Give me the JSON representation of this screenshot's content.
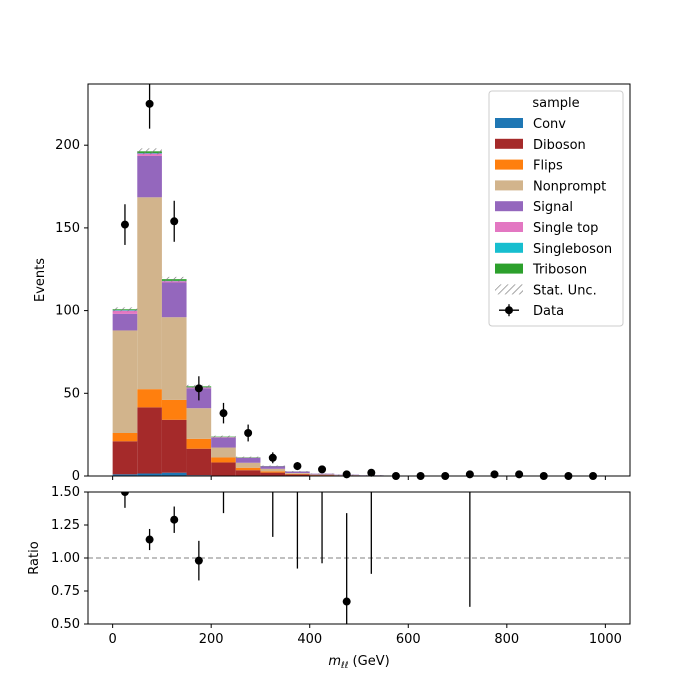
{
  "chart_data": {
    "type": "bar",
    "stacked": true,
    "x_bin_edges": [
      0,
      50,
      100,
      150,
      200,
      250,
      300,
      350,
      400,
      450,
      500,
      550,
      600,
      650,
      700,
      750,
      800,
      850,
      900,
      950,
      1000
    ],
    "xlabel_main": "m",
    "xlabel_sub": "ℓℓ",
    "xlabel_unit": " (GeV)",
    "ylabel": "Events",
    "ratio_ylabel": "Ratio",
    "xlim": [
      -50,
      1050
    ],
    "ylim": [
      0,
      237
    ],
    "ratio_ylim": [
      0.5,
      1.5
    ],
    "ratio_reference": 1.0,
    "x_ticks": [
      "0",
      "200",
      "400",
      "600",
      "800",
      "1000"
    ],
    "x_tick_values": [
      0,
      200,
      400,
      600,
      800,
      1000
    ],
    "y_ticks": [
      "0",
      "50",
      "100",
      "150",
      "200"
    ],
    "y_tick_values": [
      0,
      50,
      100,
      150,
      200
    ],
    "ratio_ticks": [
      "0.50",
      "0.75",
      "1.00",
      "1.25",
      "1.50"
    ],
    "ratio_tick_values": [
      0.5,
      0.75,
      1.0,
      1.25,
      1.5
    ],
    "legend": {
      "title": "sample",
      "placement": "top-right"
    },
    "series": [
      {
        "name": "Conv",
        "color": "#1f77b4",
        "values": [
          1,
          1.5,
          2,
          0.5,
          0.2,
          0.1,
          0.05,
          0,
          0,
          0,
          0,
          0,
          0,
          0,
          0,
          0,
          0,
          0,
          0,
          0
        ]
      },
      {
        "name": "Diboson",
        "color": "#a52a2a",
        "values": [
          20,
          40,
          32,
          16,
          8,
          3.4,
          2,
          1,
          0.5,
          0.3,
          0.2,
          0.1,
          0.05,
          0.05,
          0,
          0,
          0,
          0,
          0,
          0
        ]
      },
      {
        "name": "Flips",
        "color": "#ff7f0e",
        "values": [
          5,
          11,
          12,
          6,
          3,
          1.5,
          0.8,
          0.3,
          0.2,
          0.1,
          0,
          0,
          0,
          0,
          0,
          0,
          0,
          0,
          0,
          0
        ]
      },
      {
        "name": "Nonprompt",
        "color": "#d2b48c",
        "values": [
          62,
          116,
          50,
          18.5,
          6,
          3,
          1.5,
          0.5,
          0.2,
          0.1,
          0,
          0,
          0,
          0,
          0,
          0,
          0,
          0,
          0,
          0
        ]
      },
      {
        "name": "Signal",
        "color": "#9467bd",
        "values": [
          10,
          25,
          21,
          12,
          6,
          3,
          1.6,
          0.9,
          0.5,
          0.3,
          0.2,
          0.1,
          0.05,
          0,
          0,
          0,
          0,
          0,
          0,
          0
        ]
      },
      {
        "name": "Single top",
        "color": "#e377c2",
        "values": [
          2,
          1.5,
          0.8,
          0.5,
          0.3,
          0.1,
          0,
          0,
          0,
          0,
          0,
          0,
          0,
          0,
          0,
          0,
          0,
          0,
          0,
          0
        ]
      },
      {
        "name": "Singleboson",
        "color": "#17becf",
        "values": [
          0.3,
          0.3,
          0.2,
          0.1,
          0,
          0,
          0,
          0,
          0,
          0,
          0,
          0,
          0,
          0,
          0,
          0,
          0,
          0,
          0,
          0
        ]
      },
      {
        "name": "Triboson",
        "color": "#2ca02c",
        "values": [
          0.5,
          1,
          1,
          0.6,
          0.3,
          0.2,
          0.1,
          0.05,
          0,
          0,
          0,
          0,
          0,
          0,
          0,
          0,
          0,
          0,
          0,
          0
        ]
      }
    ],
    "stat_unc_label": "Stat. Unc.",
    "stat_unc": [
      1.2,
      1.8,
      1.4,
      0.9,
      0.6,
      0.4,
      0.3,
      0.2,
      0.1,
      0.1,
      0.05,
      0.05,
      0.05,
      0.05,
      0,
      0,
      0,
      0,
      0,
      0
    ],
    "data": {
      "name": "Data",
      "x": [
        25,
        75,
        125,
        175,
        225,
        275,
        325,
        375,
        425,
        475,
        525,
        575,
        625,
        675,
        725,
        775,
        825,
        875,
        925,
        975
      ],
      "y": [
        152,
        225,
        154,
        53,
        38,
        26,
        11,
        6,
        4,
        1,
        2,
        0,
        0,
        0,
        1,
        1,
        1,
        0,
        0,
        0
      ],
      "yerr": [
        12.3,
        15.0,
        12.4,
        7.3,
        6.2,
        5.1,
        3.3,
        2.4,
        2.0,
        1.0,
        1.4,
        0,
        0,
        0,
        1.0,
        1.0,
        1.0,
        0,
        0,
        0
      ]
    },
    "ratio": {
      "x": [
        25,
        75,
        125,
        175,
        475
      ],
      "y": [
        1.5,
        1.14,
        1.29,
        0.98,
        0.67
      ],
      "yerr": [
        0.12,
        0.08,
        0.1,
        0.15,
        0.67
      ],
      "bars_only": [
        {
          "x": 225,
          "lo": 1.34,
          "hi": 1.5
        },
        {
          "x": 325,
          "lo": 1.16,
          "hi": 1.5
        },
        {
          "x": 375,
          "lo": 0.92,
          "hi": 1.5
        },
        {
          "x": 425,
          "lo": 0.96,
          "hi": 1.5
        },
        {
          "x": 525,
          "lo": 0.88,
          "hi": 1.5
        },
        {
          "x": 725,
          "lo": 0.63,
          "hi": 1.5
        }
      ]
    }
  }
}
